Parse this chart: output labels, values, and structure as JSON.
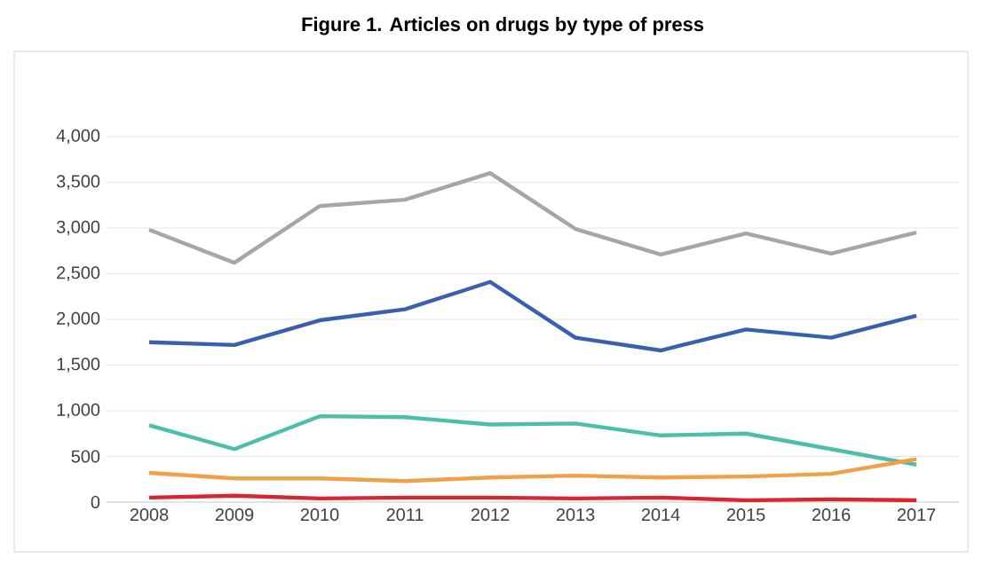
{
  "chart_data": {
    "type": "line",
    "title": "**Figure 1. Articles on drugs by type of press**",
    "categories": [
      "2008",
      "2009",
      "2010",
      "2011",
      "2012",
      "2013",
      "2014",
      "2015",
      "2016",
      "2017"
    ],
    "series": [
      {
        "color": "#a6a6a6",
        "values": [
          2980,
          2620,
          3240,
          3310,
          3600,
          2990,
          2710,
          2940,
          2720,
          2950
        ]
      },
      {
        "color": "#3a5fad",
        "values": [
          1750,
          1720,
          1990,
          2110,
          2410,
          1800,
          1660,
          1890,
          1800,
          2040
        ]
      },
      {
        "color": "#4dbfa8",
        "values": [
          840,
          580,
          940,
          930,
          850,
          860,
          730,
          750,
          580,
          410
        ]
      },
      {
        "color": "#f0a04b",
        "values": [
          320,
          260,
          260,
          230,
          270,
          290,
          270,
          280,
          310,
          470
        ]
      },
      {
        "color": "#d9262e",
        "values": [
          50,
          70,
          40,
          50,
          50,
          40,
          50,
          20,
          30,
          20
        ]
      }
    ],
    "ylim": [
      0,
      4000
    ],
    "yticks": [
      {
        "value": 0,
        "label": "0"
      },
      {
        "value": 500,
        "label": "500"
      },
      {
        "value": 1000,
        "label": "1,000"
      },
      {
        "value": 1500,
        "label": "1,500"
      },
      {
        "value": 2000,
        "label": "2,000"
      },
      {
        "value": 2500,
        "label": "2,500"
      },
      {
        "value": 3000,
        "label": "3,000"
      },
      {
        "value": 3500,
        "label": "3,500"
      },
      {
        "value": 4000,
        "label": "4,000"
      }
    ],
    "grid": "y",
    "marker": "none",
    "line_style": "solid"
  }
}
